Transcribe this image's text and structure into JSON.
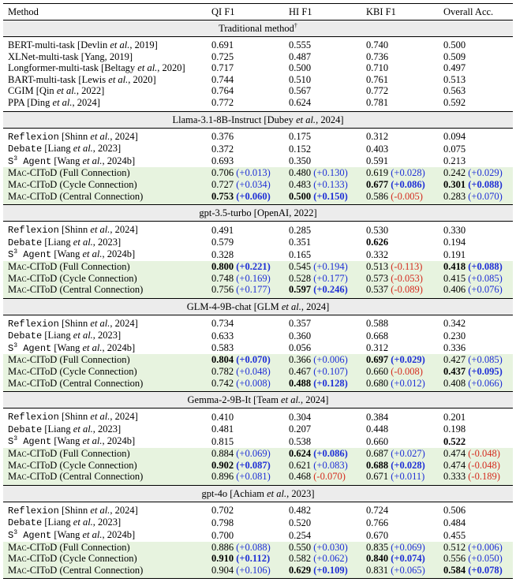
{
  "headers": [
    "Method",
    "QI F1",
    "HI F1",
    "KBI F1",
    "Overall Acc."
  ],
  "groups": [
    {
      "title": "Traditional method",
      "title_sup": "†",
      "rows": [
        {
          "m": {
            "pre": "BERT-multi-task [Devlin ",
            "it": "et al.",
            "post": ", 2019]"
          },
          "c": [
            {
              "v": "0.691"
            },
            {
              "v": "0.555"
            },
            {
              "v": "0.740"
            },
            {
              "v": "0.500"
            }
          ]
        },
        {
          "m": {
            "pre": "XLNet-multi-task [Yang, 2019]"
          },
          "c": [
            {
              "v": "0.725"
            },
            {
              "v": "0.487"
            },
            {
              "v": "0.736"
            },
            {
              "v": "0.509"
            }
          ]
        },
        {
          "m": {
            "pre": "Longformer-multi-task [Beltagy ",
            "it": "et al.",
            "post": ", 2020]"
          },
          "c": [
            {
              "v": "0.717"
            },
            {
              "v": "0.500"
            },
            {
              "v": "0.710"
            },
            {
              "v": "0.497"
            }
          ]
        },
        {
          "m": {
            "pre": "BART-multi-task [Lewis ",
            "it": "et al.",
            "post": ", 2020]"
          },
          "c": [
            {
              "v": "0.744"
            },
            {
              "v": "0.510"
            },
            {
              "v": "0.761"
            },
            {
              "v": "0.513"
            }
          ]
        },
        {
          "m": {
            "pre": "CGIM [Qin ",
            "it": "et al.",
            "post": ", 2022]"
          },
          "c": [
            {
              "v": "0.764"
            },
            {
              "v": "0.567"
            },
            {
              "v": "0.772"
            },
            {
              "v": "0.563"
            }
          ]
        },
        {
          "m": {
            "pre": "PPA [Ding ",
            "it": "et al.",
            "post": ", 2024]"
          },
          "c": [
            {
              "v": "0.772"
            },
            {
              "v": "0.624"
            },
            {
              "v": "0.781"
            },
            {
              "v": "0.592"
            }
          ]
        }
      ]
    },
    {
      "title": "Llama-3.1-8B-Instruct [Dubey et al., 2024]",
      "rows": [
        {
          "m": {
            "code": "Reflexion",
            "pre": " [Shinn ",
            "it": "et al.",
            "post": ", 2024]"
          },
          "c": [
            {
              "v": "0.376"
            },
            {
              "v": "0.175"
            },
            {
              "v": "0.312"
            },
            {
              "v": "0.094"
            }
          ]
        },
        {
          "m": {
            "code": "Debate",
            "pre": " [Liang ",
            "it": "et al.",
            "post": ", 2023]"
          },
          "c": [
            {
              "v": "0.372"
            },
            {
              "v": "0.152"
            },
            {
              "v": "0.403"
            },
            {
              "v": "0.075"
            }
          ]
        },
        {
          "m": {
            "s3": true,
            "pre": " [Wang ",
            "it": "et al.",
            "post": ", 2024b]"
          },
          "c": [
            {
              "v": "0.693"
            },
            {
              "v": "0.350"
            },
            {
              "v": "0.591"
            },
            {
              "v": "0.213"
            }
          ]
        },
        {
          "ours": true,
          "m": {
            "sc": "Mac",
            "pre": "-CIToD (Full Connection)"
          },
          "c": [
            {
              "v": "0.706",
              "d": "(+0.013)"
            },
            {
              "v": "0.480",
              "d": "(+0.130)"
            },
            {
              "v": "0.619",
              "d": "(+0.028)"
            },
            {
              "v": "0.242",
              "d": "(+0.029)"
            }
          ]
        },
        {
          "ours": true,
          "m": {
            "sc": "Mac",
            "pre": "-CIToD (Cycle Connection)"
          },
          "c": [
            {
              "v": "0.727",
              "d": "(+0.034)"
            },
            {
              "v": "0.483",
              "d": "(+0.133)"
            },
            {
              "v": "0.677",
              "d": "(+0.086)",
              "b": true
            },
            {
              "v": "0.301",
              "d": "(+0.088)",
              "b": true
            }
          ]
        },
        {
          "ours": true,
          "m": {
            "sc": "Mac",
            "pre": "-CIToD (Central Connection)"
          },
          "c": [
            {
              "v": "0.753",
              "d": "(+0.060)",
              "b": true
            },
            {
              "v": "0.500",
              "d": "(+0.150)",
              "b": true
            },
            {
              "v": "0.586",
              "d": "(-0.005)"
            },
            {
              "v": "0.283",
              "d": "(+0.070)"
            }
          ]
        }
      ]
    },
    {
      "title": "gpt-3.5-turbo [OpenAI, 2022]",
      "rows": [
        {
          "m": {
            "code": "Reflexion",
            "pre": " [Shinn ",
            "it": "et al.",
            "post": ", 2024]"
          },
          "c": [
            {
              "v": "0.491"
            },
            {
              "v": "0.285"
            },
            {
              "v": "0.530"
            },
            {
              "v": "0.330"
            }
          ]
        },
        {
          "m": {
            "code": "Debate",
            "pre": " [Liang ",
            "it": "et al.",
            "post": ", 2023]"
          },
          "c": [
            {
              "v": "0.579"
            },
            {
              "v": "0.351"
            },
            {
              "v": "0.626",
              "b": true
            },
            {
              "v": "0.194"
            }
          ]
        },
        {
          "m": {
            "s3": true,
            "pre": " [Wang ",
            "it": "et al.",
            "post": ", 2024b]"
          },
          "c": [
            {
              "v": "0.328"
            },
            {
              "v": "0.165"
            },
            {
              "v": "0.332"
            },
            {
              "v": "0.191"
            }
          ]
        },
        {
          "ours": true,
          "m": {
            "sc": "Mac",
            "pre": "-CIToD (Full Connection)"
          },
          "c": [
            {
              "v": "0.800",
              "d": "(+0.221)",
              "b": true
            },
            {
              "v": "0.545",
              "d": "(+0.194)"
            },
            {
              "v": "0.513",
              "d": "(-0.113)"
            },
            {
              "v": "0.418",
              "d": "(+0.088)",
              "b": true
            }
          ]
        },
        {
          "ours": true,
          "m": {
            "sc": "Mac",
            "pre": "-CIToD (Cycle Connection)"
          },
          "c": [
            {
              "v": "0.748",
              "d": "(+0.169)"
            },
            {
              "v": "0.528",
              "d": "(+0.177)"
            },
            {
              "v": "0.573",
              "d": "(-0.053)"
            },
            {
              "v": "0.415",
              "d": "(+0.085)"
            }
          ]
        },
        {
          "ours": true,
          "m": {
            "sc": "Mac",
            "pre": "-CIToD (Central Connection)"
          },
          "c": [
            {
              "v": "0.756",
              "d": "(+0.177)"
            },
            {
              "v": "0.597",
              "d": "(+0.246)",
              "b": true
            },
            {
              "v": "0.537",
              "d": "(-0.089)"
            },
            {
              "v": "0.406",
              "d": "(+0.076)"
            }
          ]
        }
      ]
    },
    {
      "title": "GLM-4-9B-chat [GLM et al., 2024]",
      "rows": [
        {
          "m": {
            "code": "Reflexion",
            "pre": " [Shinn ",
            "it": "et al.",
            "post": ", 2024]"
          },
          "c": [
            {
              "v": "0.734"
            },
            {
              "v": "0.357"
            },
            {
              "v": "0.588"
            },
            {
              "v": "0.342"
            }
          ]
        },
        {
          "m": {
            "code": "Debate",
            "pre": " [Liang ",
            "it": "et al.",
            "post": ", 2023]"
          },
          "c": [
            {
              "v": "0.633"
            },
            {
              "v": "0.360"
            },
            {
              "v": "0.668"
            },
            {
              "v": "0.230"
            }
          ]
        },
        {
          "m": {
            "s3": true,
            "pre": " [Wang ",
            "it": "et al.",
            "post": ", 2024b]"
          },
          "c": [
            {
              "v": "0.583"
            },
            {
              "v": "0.056"
            },
            {
              "v": "0.312"
            },
            {
              "v": "0.336"
            }
          ]
        },
        {
          "ours": true,
          "m": {
            "sc": "Mac",
            "pre": "-CIToD (Full Connection)"
          },
          "c": [
            {
              "v": "0.804",
              "d": "(+0.070)",
              "b": true
            },
            {
              "v": "0.366",
              "d": "(+0.006)"
            },
            {
              "v": "0.697",
              "d": "(+0.029)",
              "b": true
            },
            {
              "v": "0.427",
              "d": "(+0.085)"
            }
          ]
        },
        {
          "ours": true,
          "m": {
            "sc": "Mac",
            "pre": "-CIToD (Cycle Connection)"
          },
          "c": [
            {
              "v": "0.782",
              "d": "(+0.048)"
            },
            {
              "v": "0.467",
              "d": "(+0.107)"
            },
            {
              "v": "0.660",
              "d": "(-0.008)"
            },
            {
              "v": "0.437",
              "d": "(+0.095)",
              "b": true
            }
          ]
        },
        {
          "ours": true,
          "m": {
            "sc": "Mac",
            "pre": "-CIToD (Central Connection)"
          },
          "c": [
            {
              "v": "0.742",
              "d": "(+0.008)"
            },
            {
              "v": "0.488",
              "d": "(+0.128)",
              "b": true
            },
            {
              "v": "0.680",
              "d": "(+0.012)"
            },
            {
              "v": "0.408",
              "d": "(+0.066)"
            }
          ]
        }
      ]
    },
    {
      "title": "Gemma-2-9B-It [Team et al., 2024]",
      "rows": [
        {
          "m": {
            "code": "Reflexion",
            "pre": " [Shinn ",
            "it": "et al.",
            "post": ", 2024]"
          },
          "c": [
            {
              "v": "0.410"
            },
            {
              "v": "0.304"
            },
            {
              "v": "0.384"
            },
            {
              "v": "0.201"
            }
          ]
        },
        {
          "m": {
            "code": "Debate",
            "pre": " [Liang ",
            "it": "et al.",
            "post": ", 2023]"
          },
          "c": [
            {
              "v": "0.481"
            },
            {
              "v": "0.207"
            },
            {
              "v": "0.448"
            },
            {
              "v": "0.198"
            }
          ]
        },
        {
          "m": {
            "s3": true,
            "pre": " [Wang ",
            "it": "et al.",
            "post": ", 2024b]"
          },
          "c": [
            {
              "v": "0.815"
            },
            {
              "v": "0.538"
            },
            {
              "v": "0.660"
            },
            {
              "v": "0.522",
              "b": true
            }
          ]
        },
        {
          "ours": true,
          "m": {
            "sc": "Mac",
            "pre": "-CIToD (Full Connection)"
          },
          "c": [
            {
              "v": "0.884",
              "d": "(+0.069)"
            },
            {
              "v": "0.624",
              "d": "(+0.086)",
              "b": true
            },
            {
              "v": "0.687",
              "d": "(+0.027)"
            },
            {
              "v": "0.474",
              "d": "(-0.048)"
            }
          ]
        },
        {
          "ours": true,
          "m": {
            "sc": "Mac",
            "pre": "-CIToD (Cycle Connection)"
          },
          "c": [
            {
              "v": "0.902",
              "d": "(+0.087)",
              "b": true
            },
            {
              "v": "0.621",
              "d": "(+0.083)"
            },
            {
              "v": "0.688",
              "d": "(+0.028)",
              "b": true
            },
            {
              "v": "0.474",
              "d": "(-0.048)"
            }
          ]
        },
        {
          "ours": true,
          "m": {
            "sc": "Mac",
            "pre": "-CIToD (Central Connection)"
          },
          "c": [
            {
              "v": "0.896",
              "d": "(+0.081)"
            },
            {
              "v": "0.468",
              "d": "(-0.070)"
            },
            {
              "v": "0.671",
              "d": "(+0.011)"
            },
            {
              "v": "0.333",
              "d": "(-0.189)"
            }
          ]
        }
      ]
    },
    {
      "title": "gpt-4o [Achiam et al., 2023]",
      "rows": [
        {
          "m": {
            "code": "Reflexion",
            "pre": " [Shinn ",
            "it": "et al.",
            "post": ", 2024]"
          },
          "c": [
            {
              "v": "0.702"
            },
            {
              "v": "0.482"
            },
            {
              "v": "0.724"
            },
            {
              "v": "0.506"
            }
          ]
        },
        {
          "m": {
            "code": "Debate",
            "pre": " [Liang ",
            "it": "et al.",
            "post": ", 2023]"
          },
          "c": [
            {
              "v": "0.798"
            },
            {
              "v": "0.520"
            },
            {
              "v": "0.766"
            },
            {
              "v": "0.484"
            }
          ]
        },
        {
          "m": {
            "s3": true,
            "pre": " [Wang ",
            "it": "et al.",
            "post": ", 2024b]"
          },
          "c": [
            {
              "v": "0.700"
            },
            {
              "v": "0.254"
            },
            {
              "v": "0.670"
            },
            {
              "v": "0.455"
            }
          ]
        },
        {
          "ours": true,
          "m": {
            "sc": "Mac",
            "pre": "-CIToD (Full Connection)"
          },
          "c": [
            {
              "v": "0.886",
              "d": "(+0.088)"
            },
            {
              "v": "0.550",
              "d": "(+0.030)"
            },
            {
              "v": "0.835",
              "d": "(+0.069)"
            },
            {
              "v": "0.512",
              "d": "(+0.006)"
            }
          ]
        },
        {
          "ours": true,
          "m": {
            "sc": "Mac",
            "pre": "-CIToD (Cycle Connection)"
          },
          "c": [
            {
              "v": "0.910",
              "d": "(+0.112)",
              "b": true
            },
            {
              "v": "0.582",
              "d": "(+0.062)"
            },
            {
              "v": "0.840",
              "d": "(+0.074)",
              "b": true
            },
            {
              "v": "0.556",
              "d": "(+0.050)"
            }
          ]
        },
        {
          "ours": true,
          "m": {
            "sc": "Mac",
            "pre": "-CIToD (Central Connection)"
          },
          "c": [
            {
              "v": "0.904",
              "d": "(+0.106)"
            },
            {
              "v": "0.629",
              "d": "(+0.109)",
              "b": true
            },
            {
              "v": "0.831",
              "d": "(+0.065)"
            },
            {
              "v": "0.584",
              "d": "(+0.078)",
              "b": true
            }
          ]
        }
      ]
    }
  ],
  "s3_agent": {
    "base": "S",
    "exp": "3",
    "word": "Agent"
  },
  "colors": {
    "positive": "#1f2fd6",
    "negative": "#d42b1f",
    "highlight_row": "#e7f3df",
    "group_header": "#ececec"
  }
}
